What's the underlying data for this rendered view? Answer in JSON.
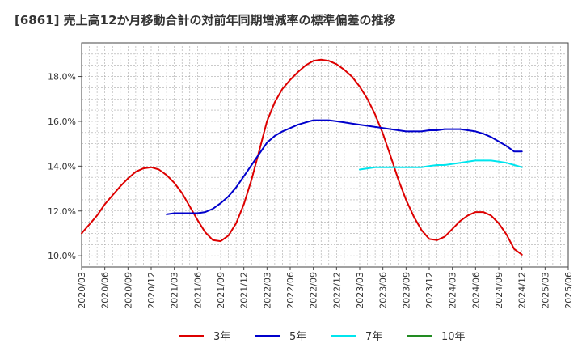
{
  "chart_data": {
    "type": "line",
    "title": "[6861]  売上高12か月移動合計の対前年同期増減率の標準偏差の推移",
    "xlabel": "",
    "ylabel": "",
    "x_ticks": [
      "2020/03",
      "2020/06",
      "2020/09",
      "2020/12",
      "2021/03",
      "2021/06",
      "2021/09",
      "2021/12",
      "2022/03",
      "2022/06",
      "2022/09",
      "2022/12",
      "2023/03",
      "2023/06",
      "2023/09",
      "2023/12",
      "2024/03",
      "2024/06",
      "2024/09",
      "2024/12",
      "2025/03",
      "2025/06"
    ],
    "y_ticks": [
      "10.0%",
      "12.0%",
      "14.0%",
      "16.0%",
      "18.0%"
    ],
    "ylim": [
      9.5,
      19.5
    ],
    "grid": true,
    "legend_position": "bottom",
    "series": [
      {
        "name": "3年",
        "color": "#dd0000",
        "points": [
          [
            "2020/03",
            11.0
          ],
          [
            "2020/04",
            11.4
          ],
          [
            "2020/05",
            11.8
          ],
          [
            "2020/06",
            12.3
          ],
          [
            "2020/07",
            12.7
          ],
          [
            "2020/08",
            13.1
          ],
          [
            "2020/09",
            13.45
          ],
          [
            "2020/10",
            13.75
          ],
          [
            "2020/11",
            13.9
          ],
          [
            "2020/12",
            13.95
          ],
          [
            "2021/01",
            13.85
          ],
          [
            "2021/02",
            13.6
          ],
          [
            "2021/03",
            13.25
          ],
          [
            "2021/04",
            12.8
          ],
          [
            "2021/05",
            12.2
          ],
          [
            "2021/06",
            11.6
          ],
          [
            "2021/07",
            11.05
          ],
          [
            "2021/08",
            10.7
          ],
          [
            "2021/09",
            10.65
          ],
          [
            "2021/10",
            10.9
          ],
          [
            "2021/11",
            11.45
          ],
          [
            "2021/12",
            12.3
          ],
          [
            "2022/01",
            13.4
          ],
          [
            "2022/02",
            14.7
          ],
          [
            "2022/03",
            16.0
          ],
          [
            "2022/04",
            16.85
          ],
          [
            "2022/05",
            17.45
          ],
          [
            "2022/06",
            17.85
          ],
          [
            "2022/07",
            18.2
          ],
          [
            "2022/08",
            18.5
          ],
          [
            "2022/09",
            18.7
          ],
          [
            "2022/10",
            18.75
          ],
          [
            "2022/11",
            18.7
          ],
          [
            "2022/12",
            18.55
          ],
          [
            "2023/01",
            18.3
          ],
          [
            "2023/02",
            18.0
          ],
          [
            "2023/03",
            17.55
          ],
          [
            "2023/04",
            17.0
          ],
          [
            "2023/05",
            16.3
          ],
          [
            "2023/06",
            15.45
          ],
          [
            "2023/07",
            14.45
          ],
          [
            "2023/08",
            13.4
          ],
          [
            "2023/09",
            12.5
          ],
          [
            "2023/10",
            11.75
          ],
          [
            "2023/11",
            11.15
          ],
          [
            "2023/12",
            10.75
          ],
          [
            "2024/01",
            10.7
          ],
          [
            "2024/02",
            10.85
          ],
          [
            "2024/03",
            11.2
          ],
          [
            "2024/04",
            11.55
          ],
          [
            "2024/05",
            11.8
          ],
          [
            "2024/06",
            11.95
          ],
          [
            "2024/07",
            11.95
          ],
          [
            "2024/08",
            11.8
          ],
          [
            "2024/09",
            11.45
          ],
          [
            "2024/10",
            10.95
          ],
          [
            "2024/11",
            10.3
          ],
          [
            "2024/12",
            10.05
          ]
        ]
      },
      {
        "name": "5年",
        "color": "#0000cc",
        "points": [
          [
            "2021/02",
            11.85
          ],
          [
            "2021/03",
            11.9
          ],
          [
            "2021/04",
            11.9
          ],
          [
            "2021/05",
            11.9
          ],
          [
            "2021/06",
            11.9
          ],
          [
            "2021/07",
            11.95
          ],
          [
            "2021/08",
            12.1
          ],
          [
            "2021/09",
            12.35
          ],
          [
            "2021/10",
            12.65
          ],
          [
            "2021/11",
            13.05
          ],
          [
            "2021/12",
            13.55
          ],
          [
            "2022/01",
            14.05
          ],
          [
            "2022/02",
            14.55
          ],
          [
            "2022/03",
            15.05
          ],
          [
            "2022/04",
            15.35
          ],
          [
            "2022/05",
            15.55
          ],
          [
            "2022/06",
            15.7
          ],
          [
            "2022/07",
            15.85
          ],
          [
            "2022/08",
            15.95
          ],
          [
            "2022/09",
            16.05
          ],
          [
            "2022/10",
            16.05
          ],
          [
            "2022/11",
            16.05
          ],
          [
            "2022/12",
            16.0
          ],
          [
            "2023/01",
            15.95
          ],
          [
            "2023/02",
            15.9
          ],
          [
            "2023/03",
            15.85
          ],
          [
            "2023/04",
            15.8
          ],
          [
            "2023/05",
            15.75
          ],
          [
            "2023/06",
            15.7
          ],
          [
            "2023/07",
            15.65
          ],
          [
            "2023/08",
            15.6
          ],
          [
            "2023/09",
            15.55
          ],
          [
            "2023/10",
            15.55
          ],
          [
            "2023/11",
            15.55
          ],
          [
            "2023/12",
            15.6
          ],
          [
            "2024/01",
            15.6
          ],
          [
            "2024/02",
            15.65
          ],
          [
            "2024/03",
            15.65
          ],
          [
            "2024/04",
            15.65
          ],
          [
            "2024/05",
            15.6
          ],
          [
            "2024/06",
            15.55
          ],
          [
            "2024/07",
            15.45
          ],
          [
            "2024/08",
            15.3
          ],
          [
            "2024/09",
            15.1
          ],
          [
            "2024/10",
            14.9
          ],
          [
            "2024/11",
            14.65
          ],
          [
            "2024/12",
            14.65
          ]
        ]
      },
      {
        "name": "7年",
        "color": "#00e5ee",
        "points": [
          [
            "2023/03",
            13.85
          ],
          [
            "2023/04",
            13.9
          ],
          [
            "2023/05",
            13.95
          ],
          [
            "2023/06",
            13.95
          ],
          [
            "2023/07",
            13.95
          ],
          [
            "2023/08",
            13.95
          ],
          [
            "2023/09",
            13.95
          ],
          [
            "2023/10",
            13.95
          ],
          [
            "2023/11",
            13.95
          ],
          [
            "2023/12",
            14.0
          ],
          [
            "2024/01",
            14.05
          ],
          [
            "2024/02",
            14.05
          ],
          [
            "2024/03",
            14.1
          ],
          [
            "2024/04",
            14.15
          ],
          [
            "2024/05",
            14.2
          ],
          [
            "2024/06",
            14.25
          ],
          [
            "2024/07",
            14.25
          ],
          [
            "2024/08",
            14.25
          ],
          [
            "2024/09",
            14.2
          ],
          [
            "2024/10",
            14.15
          ],
          [
            "2024/11",
            14.05
          ],
          [
            "2024/12",
            13.95
          ]
        ]
      },
      {
        "name": "10年",
        "color": "#228b22",
        "points": []
      }
    ]
  }
}
